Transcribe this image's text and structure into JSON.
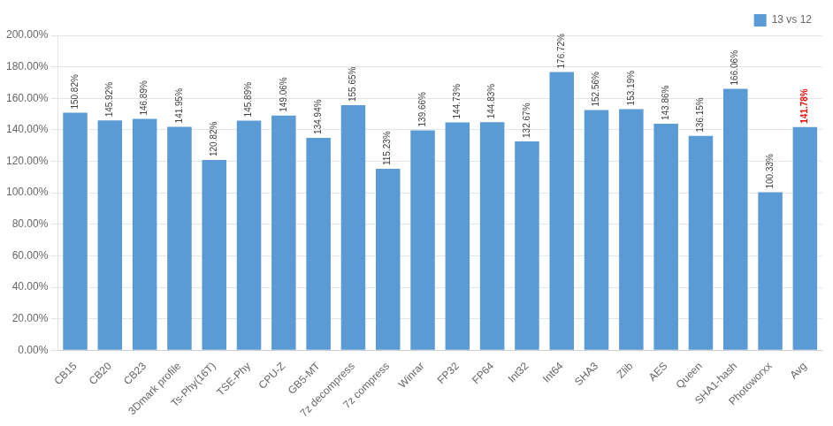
{
  "chart_data": {
    "type": "bar",
    "categories": [
      "CB15",
      "CB20",
      "CB23",
      "3Dmark profile",
      "Ts-Phy(16T)",
      "TSE-Phy",
      "CPU-Z",
      "GB5-MT",
      "7z decompress",
      "7z compress",
      "Winrar",
      "FP32",
      "FP64",
      "Int32",
      "Int64",
      "SHA3",
      "Zlib",
      "AES",
      "Queen",
      "SHA1-hash",
      "Photoworxx",
      "Avg"
    ],
    "series": [
      {
        "name": "13 vs 12",
        "color": "#5B9BD5",
        "values": [
          150.82,
          145.92,
          146.89,
          141.95,
          120.82,
          145.89,
          149.06,
          134.94,
          155.65,
          115.23,
          139.66,
          144.73,
          144.83,
          132.67,
          176.72,
          152.56,
          153.19,
          143.86,
          136.15,
          166.06,
          100.33,
          141.78
        ],
        "value_labels": [
          "150.82%",
          "145.92%",
          "146.89%",
          "141.95%",
          "120.82%",
          "145.89%",
          "149.06%",
          "134.94%",
          "155.65%",
          "115.23%",
          "139.66%",
          "144.73%",
          "144.83%",
          "132.67%",
          "176.72%",
          "152.56%",
          "153.19%",
          "143.86%",
          "136.15%",
          "166.06%",
          "100.33%",
          "141.78%"
        ]
      }
    ],
    "ylim": [
      0,
      200
    ],
    "yticks": [
      {
        "value": 0,
        "label": "0.00%"
      },
      {
        "value": 20,
        "label": "20.00%"
      },
      {
        "value": 40,
        "label": "40.00%"
      },
      {
        "value": 60,
        "label": "60.00%"
      },
      {
        "value": 80,
        "label": "80.00%"
      },
      {
        "value": 100,
        "label": "100.00%"
      },
      {
        "value": 120,
        "label": "120.00%"
      },
      {
        "value": 140,
        "label": "140.00%"
      },
      {
        "value": 160,
        "label": "160.00%"
      },
      {
        "value": 180,
        "label": "180.00%"
      },
      {
        "value": 200,
        "label": "200.00%"
      }
    ],
    "grid": true,
    "legend": "upper right",
    "data_labels": true
  }
}
